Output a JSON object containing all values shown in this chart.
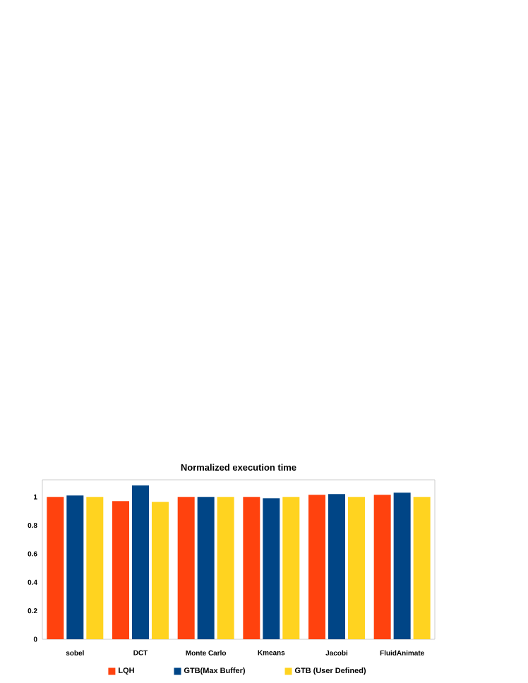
{
  "chart_data": {
    "type": "bar",
    "title": "Normalized execution time",
    "categories": [
      "sobel",
      "DCT",
      "Monte Carlo",
      "Kmeans",
      "Jacobi",
      "FluidAnimate"
    ],
    "series": [
      {
        "name": "LQH",
        "color": "#ff420e",
        "values": [
          1.0,
          0.97,
          1.0,
          1.0,
          1.015,
          1.015
        ]
      },
      {
        "name": "GTB(Max Buffer)",
        "color": "#004586",
        "values": [
          1.01,
          1.08,
          1.0,
          0.99,
          1.02,
          1.03
        ]
      },
      {
        "name": "GTB (User Defined)",
        "color": "#ffd320",
        "values": [
          1.0,
          0.965,
          1.0,
          1.0,
          1.0,
          1.0
        ]
      }
    ],
    "ylim": [
      0,
      1.12
    ],
    "yticks": [
      0,
      0.2,
      0.4,
      0.6,
      0.8,
      1
    ],
    "grid": false,
    "legend": "bottom"
  }
}
